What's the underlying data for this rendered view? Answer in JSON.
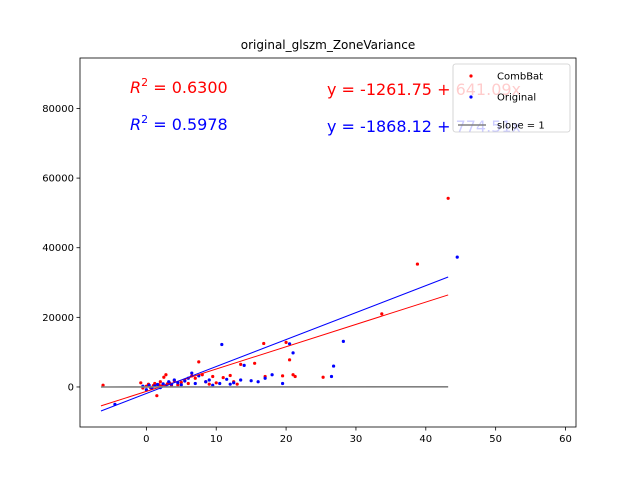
{
  "chart_data": {
    "type": "scatter",
    "title": "original_glszm_ZoneVariance",
    "xlabel": "",
    "ylabel": "",
    "xlim": [
      -9.5,
      61.5
    ],
    "ylim": [
      -11500,
      94500
    ],
    "xticks": [
      0,
      10,
      20,
      30,
      40,
      50,
      60
    ],
    "yticks": [
      0,
      20000,
      40000,
      60000,
      80000
    ],
    "xtick_labels": [
      "0",
      "10",
      "20",
      "30",
      "40",
      "50",
      "60"
    ],
    "ytick_labels": [
      "0",
      "20000",
      "40000",
      "60000",
      "80000"
    ],
    "grid": false,
    "legend_position": "top-right",
    "series": [
      {
        "name": "CombBat",
        "color": "#ff0000",
        "points": [
          [
            -6.2,
            500
          ],
          [
            -0.8,
            1200
          ],
          [
            -0.5,
            -300
          ],
          [
            0.0,
            200
          ],
          [
            0.3,
            800
          ],
          [
            0.6,
            -200
          ],
          [
            1.0,
            400
          ],
          [
            1.2,
            1000
          ],
          [
            1.5,
            -2500
          ],
          [
            1.8,
            600
          ],
          [
            2.0,
            1500
          ],
          [
            2.2,
            300
          ],
          [
            2.5,
            2800
          ],
          [
            2.8,
            3500
          ],
          [
            3.0,
            900
          ],
          [
            3.3,
            1200
          ],
          [
            3.6,
            500
          ],
          [
            4.0,
            1800
          ],
          [
            4.5,
            600
          ],
          [
            5.0,
            1300
          ],
          [
            5.5,
            2000
          ],
          [
            6.0,
            1000
          ],
          [
            6.5,
            3200
          ],
          [
            7.0,
            2500
          ],
          [
            7.5,
            7200
          ],
          [
            8.0,
            3500
          ],
          [
            8.5,
            1500
          ],
          [
            9.0,
            800
          ],
          [
            9.5,
            3000
          ],
          [
            10.0,
            1200
          ],
          [
            11.0,
            2700
          ],
          [
            12.0,
            3300
          ],
          [
            12.5,
            1500
          ],
          [
            13.0,
            800
          ],
          [
            13.5,
            6500
          ],
          [
            15.5,
            6800
          ],
          [
            16.8,
            12500
          ],
          [
            17.0,
            3000
          ],
          [
            19.5,
            3200
          ],
          [
            20.0,
            12800
          ],
          [
            20.5,
            7800
          ],
          [
            21.0,
            3500
          ],
          [
            21.3,
            3000
          ],
          [
            25.3,
            2800
          ],
          [
            33.7,
            21000
          ],
          [
            38.8,
            35300
          ],
          [
            43.2,
            54200
          ]
        ]
      },
      {
        "name": "Original",
        "color": "#0000ff",
        "points": [
          [
            -4.5,
            -5000
          ],
          [
            -0.5,
            200
          ],
          [
            0.0,
            -800
          ],
          [
            0.4,
            500
          ],
          [
            0.8,
            -400
          ],
          [
            1.2,
            300
          ],
          [
            1.6,
            700
          ],
          [
            2.0,
            -200
          ],
          [
            2.4,
            900
          ],
          [
            2.8,
            400
          ],
          [
            3.2,
            1500
          ],
          [
            3.6,
            800
          ],
          [
            4.0,
            2000
          ],
          [
            4.5,
            1200
          ],
          [
            5.0,
            600
          ],
          [
            5.5,
            1700
          ],
          [
            6.0,
            2500
          ],
          [
            6.5,
            4000
          ],
          [
            7.0,
            1000
          ],
          [
            7.5,
            3200
          ],
          [
            8.5,
            1500
          ],
          [
            9.0,
            2000
          ],
          [
            9.5,
            500
          ],
          [
            10.5,
            1000
          ],
          [
            10.8,
            12200
          ],
          [
            11.5,
            2200
          ],
          [
            12.0,
            800
          ],
          [
            12.5,
            1200
          ],
          [
            13.5,
            2000
          ],
          [
            14.0,
            6200
          ],
          [
            15.0,
            1800
          ],
          [
            16.0,
            1500
          ],
          [
            17.0,
            2500
          ],
          [
            18.0,
            3500
          ],
          [
            19.5,
            1000
          ],
          [
            20.5,
            12400
          ],
          [
            21.0,
            9800
          ],
          [
            26.5,
            3000
          ],
          [
            26.8,
            6000
          ],
          [
            28.2,
            13100
          ],
          [
            44.5,
            37300
          ]
        ]
      },
      {
        "name": "slope = 1",
        "color": "#808080",
        "points": []
      }
    ],
    "fits": [
      {
        "series": "CombBat",
        "intercept": -1261.75,
        "slope": 641.09,
        "x_range": [
          -6.5,
          43.2
        ],
        "color": "#ff0000"
      },
      {
        "series": "Original",
        "intercept": -1868.12,
        "slope": 774.51,
        "x_range": [
          -6.5,
          43.2
        ],
        "color": "#0000ff"
      },
      {
        "series": "slope = 1",
        "intercept": 0,
        "slope": 1,
        "x_range": [
          -6.5,
          43.2
        ],
        "color": "#808080"
      }
    ],
    "annotations": [
      {
        "text_prefix": "R",
        "sup": "2",
        "text_suffix": " = 0.6300",
        "color": "#ff0000"
      },
      {
        "text_prefix": "R",
        "sup": "2",
        "text_suffix": " = 0.5978",
        "color": "#0000ff"
      },
      {
        "text": "y = -1261.75 + 641.09x",
        "color": "#ff0000"
      },
      {
        "text": "y = -1868.12 + 774.51x",
        "color": "#0000ff"
      }
    ]
  }
}
